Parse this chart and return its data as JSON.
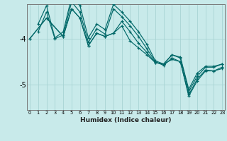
{
  "xlabel": "Humidex (Indice chaleur)",
  "ylabel": "",
  "bg_color": "#c8eaea",
  "line_color": "#006868",
  "grid_color": "#a8d4d4",
  "ylim": [
    -5.55,
    -3.25
  ],
  "xlim": [
    -0.3,
    23.3
  ],
  "yticks": [
    -5.0,
    -4.0
  ],
  "series": [
    [
      -4.0,
      null,
      -3.55,
      null,
      -3.95,
      -3.35,
      -3.55,
      -4.15,
      -3.88,
      -3.95,
      -3.88,
      -3.72,
      -4.05,
      -4.2,
      -4.35,
      -4.52,
      -4.55,
      -4.45,
      -4.5,
      -5.25,
      -4.92,
      -4.7,
      -4.7,
      -4.65
    ],
    [
      -4.0,
      null,
      -3.55,
      null,
      -3.95,
      -3.35,
      -3.55,
      -4.15,
      -3.88,
      -3.95,
      -3.88,
      -3.62,
      -3.85,
      -4.1,
      -4.3,
      -4.52,
      -4.55,
      -4.35,
      -4.4,
      -5.1,
      -4.75,
      -4.6,
      -4.6,
      -4.55
    ],
    [
      null,
      -3.85,
      -3.42,
      -4.0,
      -3.92,
      -3.2,
      -3.42,
      -4.08,
      -3.78,
      -3.9,
      -3.35,
      -3.52,
      -3.72,
      -3.95,
      -4.22,
      -4.5,
      -4.58,
      -4.42,
      -4.5,
      -5.22,
      -4.88,
      -4.68,
      -4.7,
      -4.62
    ],
    [
      null,
      -3.68,
      -3.28,
      -3.98,
      -3.85,
      -3.1,
      -3.28,
      -3.98,
      -3.68,
      -3.8,
      -3.25,
      -3.42,
      -3.62,
      -3.85,
      -4.12,
      -4.48,
      -4.55,
      -4.35,
      -4.42,
      -5.15,
      -4.82,
      -4.62,
      -4.62,
      -4.55
    ]
  ]
}
